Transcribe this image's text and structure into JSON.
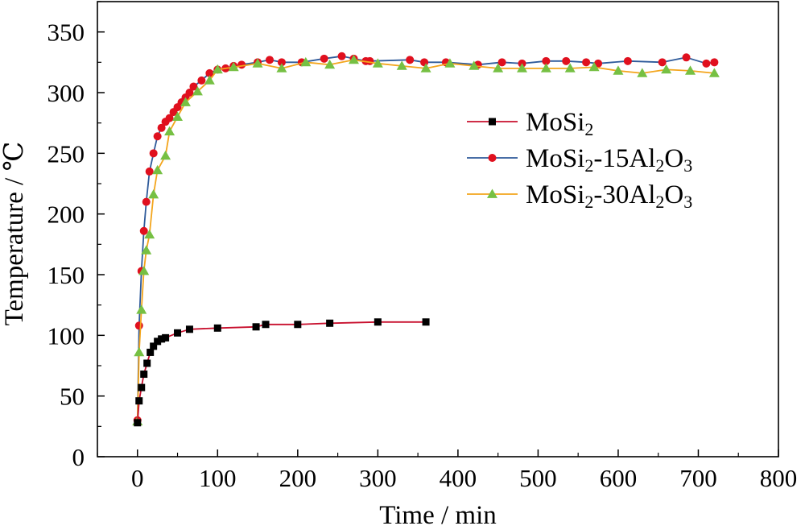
{
  "chart_data": {
    "type": "line",
    "xlabel": "Time / min",
    "ylabel": "Temperature / ℃",
    "xlim": [
      -50,
      800
    ],
    "ylim": [
      0,
      375
    ],
    "xticks": [
      0,
      100,
      200,
      300,
      400,
      500,
      600,
      700,
      800
    ],
    "yticks": [
      0,
      50,
      100,
      150,
      200,
      250,
      300,
      350
    ],
    "grid": false,
    "legend_position": "center-right",
    "series": [
      {
        "name": "MoSi₂",
        "name_parts": [
          {
            "t": "MoSi",
            "s": false
          },
          {
            "t": "2",
            "s": true
          }
        ],
        "color": "#c8102e",
        "marker": "square",
        "marker_color": "#000000",
        "x": [
          0,
          2,
          5,
          8,
          12,
          16,
          20,
          25,
          30,
          35,
          50,
          65,
          100,
          148,
          160,
          200,
          240,
          300,
          360
        ],
        "y": [
          28,
          46,
          57,
          68,
          77,
          86,
          91,
          95,
          97,
          98,
          102,
          105,
          106,
          107,
          109,
          109,
          110,
          111,
          111
        ]
      },
      {
        "name": "MoSi₂-15Al₂O₃",
        "name_parts": [
          {
            "t": "MoSi",
            "s": false
          },
          {
            "t": "2",
            "s": true
          },
          {
            "t": "-15Al",
            "s": false
          },
          {
            "t": "2",
            "s": true
          },
          {
            "t": "O",
            "s": false
          },
          {
            "t": "3",
            "s": true
          }
        ],
        "color": "#2e5a9a",
        "marker": "circle",
        "marker_color": "#e0101e",
        "x": [
          0,
          2,
          5,
          8,
          11,
          15,
          20,
          25,
          30,
          35,
          40,
          45,
          50,
          55,
          60,
          65,
          70,
          80,
          90,
          100,
          110,
          120,
          130,
          150,
          165,
          180,
          205,
          233,
          255,
          270,
          285,
          290,
          340,
          358,
          385,
          425,
          455,
          480,
          510,
          535,
          560,
          575,
          612,
          655,
          685,
          710,
          720
        ],
        "y": [
          30,
          108,
          153,
          186,
          210,
          235,
          250,
          264,
          271,
          276,
          279,
          284,
          288,
          292,
          296,
          300,
          305,
          310,
          316,
          319,
          320,
          322,
          323,
          325,
          327,
          325,
          325,
          328,
          330,
          328,
          326,
          326,
          327,
          325,
          325,
          323,
          325,
          324,
          326,
          326,
          325,
          324,
          326,
          325,
          329,
          324,
          325
        ]
      },
      {
        "name": "MoSi₂-30Al₂O₃",
        "name_parts": [
          {
            "t": "MoSi",
            "s": false
          },
          {
            "t": "2",
            "s": true
          },
          {
            "t": "-30Al",
            "s": false
          },
          {
            "t": "2",
            "s": true
          },
          {
            "t": "O",
            "s": false
          },
          {
            "t": "3",
            "s": true
          }
        ],
        "color": "#f3a51c",
        "marker": "triangle",
        "marker_color": "#76c043",
        "x": [
          0,
          2,
          5,
          8,
          11,
          15,
          20,
          25,
          35,
          40,
          50,
          60,
          75,
          90,
          100,
          120,
          150,
          180,
          210,
          240,
          270,
          300,
          330,
          360,
          390,
          420,
          450,
          480,
          510,
          540,
          570,
          600,
          630,
          660,
          690,
          720
        ],
        "y": [
          29,
          86,
          121,
          153,
          170,
          183,
          216,
          236,
          248,
          268,
          280,
          292,
          301,
          310,
          319,
          321,
          324,
          320,
          325,
          323,
          327,
          324,
          322,
          320,
          324,
          322,
          320,
          320,
          320,
          320,
          321,
          318,
          316,
          319,
          318,
          316
        ]
      }
    ]
  }
}
